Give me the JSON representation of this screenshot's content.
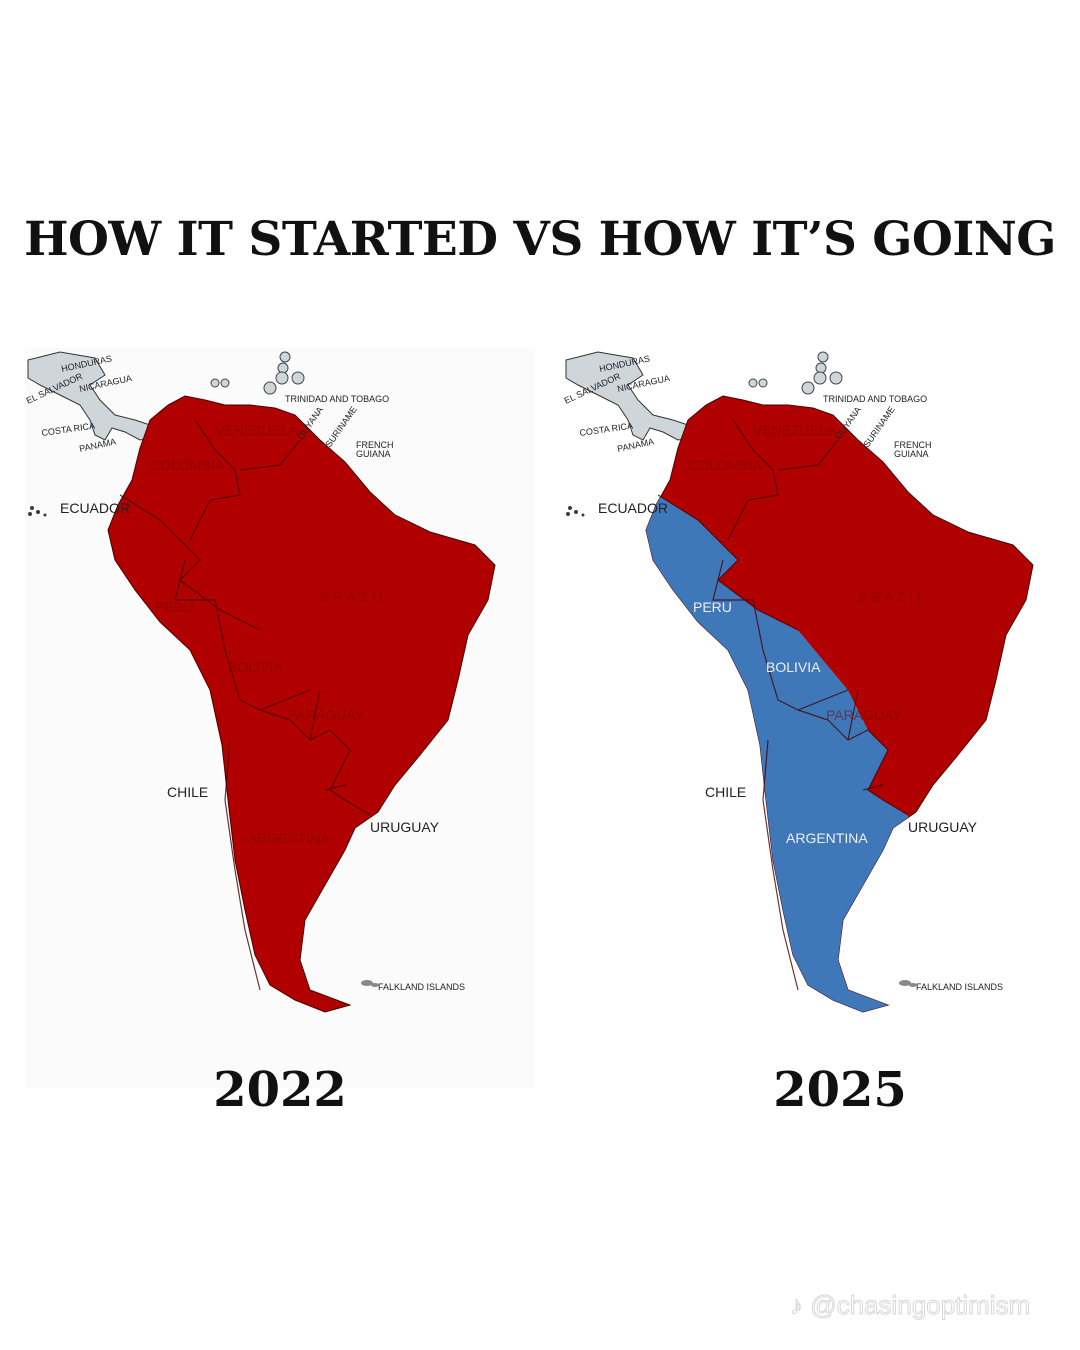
{
  "title": "HOW IT STARTED VS HOW IT’S GOING",
  "colors": {
    "red": "#b00000",
    "blue": "#3f78b8",
    "land_other": "#cfd6da",
    "border": "#5a0000"
  },
  "maps": [
    {
      "year": "2022",
      "blue_countries": [],
      "red_countries": [
        "Colombia",
        "Venezuela",
        "Ecuador",
        "Peru",
        "Bolivia",
        "Brazil",
        "Paraguay",
        "Chile",
        "Argentina",
        "Uruguay",
        "Guyana",
        "Suriname",
        "French Guiana"
      ]
    },
    {
      "year": "2025",
      "blue_countries": [
        "Ecuador",
        "Peru",
        "Bolivia",
        "Paraguay",
        "Chile",
        "Argentina"
      ],
      "red_countries": [
        "Colombia",
        "Venezuela",
        "Brazil",
        "Uruguay",
        "Guyana",
        "Suriname",
        "French Guiana"
      ]
    }
  ],
  "labels": {
    "honduras": "HONDURAS",
    "nicaragua": "NICARAGUA",
    "el_salvador": "EL SALVADOR",
    "costa_rica": "COSTA RICA",
    "panama": "PANAMA",
    "trinidad": "TRINIDAD AND TOBAGO",
    "guyana": "GUYANA",
    "suriname": "SURINAME",
    "french_guiana_1": "FRENCH",
    "french_guiana_2": "GUIANA",
    "ecuador": "ECUADOR",
    "colombia": "COLOMBIA",
    "venezuela": "VENEZUELA",
    "peru": "PERU",
    "brazil": "B R A Z I L",
    "bolivia": "BOLIVIA",
    "paraguay": "PARAGUAY",
    "chile": "CHILE",
    "uruguay": "URUGUAY",
    "argentina": "ARGENTINA",
    "falklands": "FALKLAND ISLANDS"
  },
  "watermark": "♪ @chasingoptimism"
}
